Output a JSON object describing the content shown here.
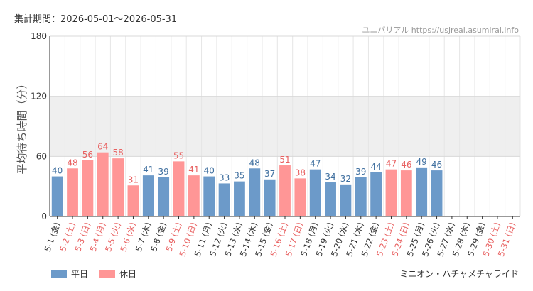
{
  "header": {
    "period_label": "集計期間：2026-05-01～2026-05-31",
    "watermark": "ユニバリアル  https://usjreal.asumirai.info"
  },
  "footer": {
    "attraction": "ミニオン・ハチャメチャライド"
  },
  "colors": {
    "weekday": "#6c9ac9",
    "holiday": "#ff9696",
    "weekday_text": "#3f6f9f",
    "holiday_text": "#e86060",
    "band": "#efefef"
  },
  "chart_data": {
    "type": "bar",
    "title": "",
    "xlabel": "",
    "ylabel": "平均待ち時間（分）",
    "ylim": [
      0,
      180
    ],
    "yticks": [
      "0",
      "60",
      "120",
      "180"
    ],
    "shaded_band": [
      60,
      120
    ],
    "grid": true,
    "legend_position": "bottom-left",
    "categories": [
      "5-1 (金)",
      "5-2 (土)",
      "5-3 (日)",
      "5-4 (月)",
      "5-5 (火)",
      "5-6 (水)",
      "5-7 (木)",
      "5-8 (金)",
      "5-9 (土)",
      "5-10 (日)",
      "5-11 (月)",
      "5-12 (火)",
      "5-13 (水)",
      "5-14 (木)",
      "5-15 (金)",
      "5-16 (土)",
      "5-17 (日)",
      "5-18 (月)",
      "5-19 (火)",
      "5-20 (水)",
      "5-21 (木)",
      "5-22 (金)",
      "5-23 (土)",
      "5-24 (日)",
      "5-25 (月)",
      "5-26 (火)",
      "5-27 (水)",
      "5-28 (木)",
      "5-29 (金)",
      "5-30 (土)",
      "5-31 (日)"
    ],
    "day_types": [
      "weekday",
      "holiday",
      "holiday",
      "holiday",
      "holiday",
      "holiday",
      "weekday",
      "weekday",
      "holiday",
      "holiday",
      "weekday",
      "weekday",
      "weekday",
      "weekday",
      "weekday",
      "holiday",
      "holiday",
      "weekday",
      "weekday",
      "weekday",
      "weekday",
      "weekday",
      "holiday",
      "holiday",
      "weekday",
      "weekday",
      "weekday",
      "weekday",
      "weekday",
      "holiday",
      "holiday"
    ],
    "values": [
      40,
      48,
      56,
      64,
      58,
      31,
      41,
      39,
      55,
      41,
      40,
      33,
      35,
      48,
      37,
      51,
      38,
      47,
      34,
      32,
      39,
      44,
      47,
      46,
      49,
      46,
      null,
      null,
      null,
      null,
      null
    ],
    "series": [
      {
        "name": "平日",
        "color": "#6c9ac9"
      },
      {
        "name": "休日",
        "color": "#ff9696"
      }
    ]
  }
}
